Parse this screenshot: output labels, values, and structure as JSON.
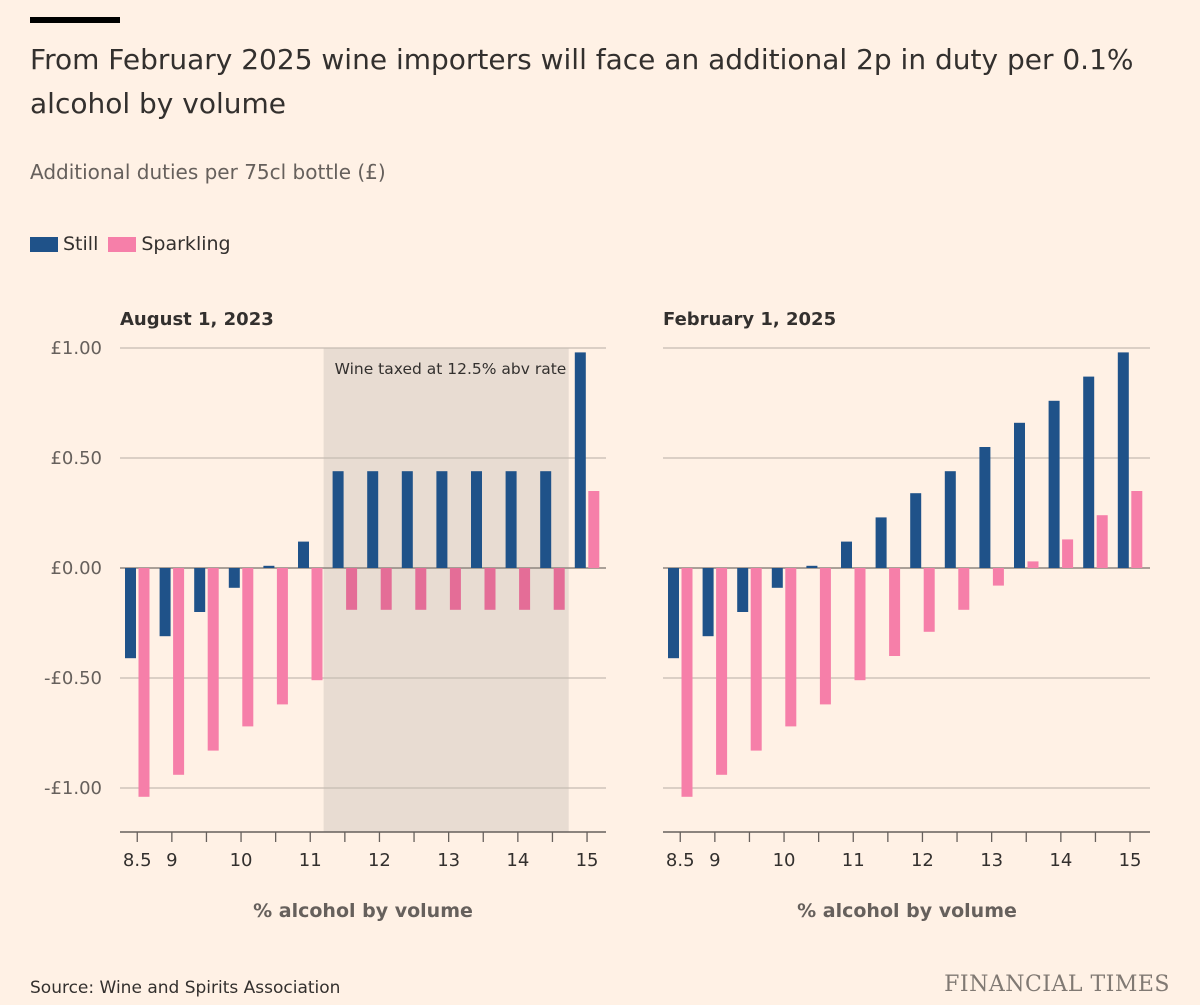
{
  "title": "From February 2025 wine importers will face an additional 2p in duty per 0.1% alcohol by volume",
  "subtitle": "Additional duties per 75cl bottle (£)",
  "legend": [
    {
      "label": "Still",
      "color": "#1f5289"
    },
    {
      "label": "Sparkling",
      "color": "#f67fa9"
    }
  ],
  "source": "Source: Wine and Spirits Association",
  "brand": "FINANCIAL TIMES",
  "chart_data": [
    {
      "type": "bar",
      "title": "August 1, 2023",
      "xlabel": "% alcohol by volume",
      "ylabel": "",
      "ylim": [
        -1.2,
        1.0
      ],
      "yticks": [
        1.0,
        0.5,
        0.0,
        -0.5,
        -1.0
      ],
      "ytick_labels": [
        "£1.00",
        "£0.50",
        "£0.00",
        "-£0.50",
        "-£1.00"
      ],
      "categories": [
        "8.5",
        "9",
        "9.5",
        "10",
        "10.5",
        "11",
        "11.5",
        "12",
        "12.5",
        "13",
        "13.5",
        "14",
        "14.5",
        "15"
      ],
      "xtick_labels": [
        "8.5",
        "9",
        "",
        "10",
        "",
        "11",
        "",
        "12",
        "",
        "13",
        "",
        "14",
        "",
        "15"
      ],
      "series": [
        {
          "name": "Still",
          "color": "#1f5289",
          "values": [
            -0.41,
            -0.31,
            -0.2,
            -0.09,
            0.01,
            0.12,
            0.44,
            0.44,
            0.44,
            0.44,
            0.44,
            0.44,
            0.44,
            0.98
          ]
        },
        {
          "name": "Sparkling",
          "color": "#f67fa9",
          "values": [
            -1.04,
            -0.94,
            -0.83,
            -0.72,
            -0.62,
            -0.51,
            -0.19,
            -0.19,
            -0.19,
            -0.19,
            -0.19,
            -0.19,
            -0.19,
            0.35
          ]
        }
      ],
      "highlight": {
        "from": "11.5",
        "to": "14.5",
        "label": "Wine taxed at 12.5% abv rate",
        "color": "#e8dcd2",
        "bar_tint": "#e46d97"
      }
    },
    {
      "type": "bar",
      "title": "February 1, 2025",
      "xlabel": "% alcohol by volume",
      "ylabel": "",
      "ylim": [
        -1.2,
        1.0
      ],
      "yticks": [
        1.0,
        0.5,
        0.0,
        -0.5,
        -1.0
      ],
      "ytick_labels": [
        "",
        "",
        "",
        "",
        ""
      ],
      "categories": [
        "8.5",
        "9",
        "9.5",
        "10",
        "10.5",
        "11",
        "11.5",
        "12",
        "12.5",
        "13",
        "13.5",
        "14",
        "14.5",
        "15"
      ],
      "xtick_labels": [
        "8.5",
        "9",
        "",
        "10",
        "",
        "11",
        "",
        "12",
        "",
        "13",
        "",
        "14",
        "",
        "15"
      ],
      "series": [
        {
          "name": "Still",
          "color": "#1f5289",
          "values": [
            -0.41,
            -0.31,
            -0.2,
            -0.09,
            0.01,
            0.12,
            0.23,
            0.34,
            0.44,
            0.55,
            0.66,
            0.76,
            0.87,
            0.98
          ]
        },
        {
          "name": "Sparkling",
          "color": "#f67fa9",
          "values": [
            -1.04,
            -0.94,
            -0.83,
            -0.72,
            -0.62,
            -0.51,
            -0.4,
            -0.29,
            -0.19,
            -0.08,
            0.03,
            0.13,
            0.24,
            0.35
          ]
        }
      ]
    }
  ]
}
